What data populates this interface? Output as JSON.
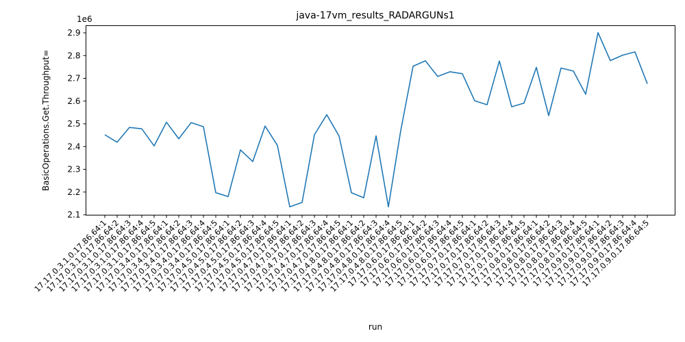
{
  "chart_data": {
    "type": "line",
    "title": "java-17vm_results_RADARGUNs1",
    "xlabel": "run",
    "ylabel": "BasicOperations.Get.Throughput=",
    "y_scale_label": "1e6",
    "ylim": [
      2.1,
      2.9
    ],
    "yticks": [
      "2.1",
      "2.2",
      "2.3",
      "2.4",
      "2.5",
      "2.6",
      "2.7",
      "2.8",
      "2.9"
    ],
    "grid": false,
    "line_color": "#1f77b4",
    "categories": [
      "17.17.0.3.1.0.17.86.64:1",
      "17.17.0.3.1.0.17.86.64:2",
      "17.17.0.3.1.0.17.86.64:3",
      "17.17.0.3.1.0.17.86.64:4",
      "17.17.0.3.1.0.17.86.64:5",
      "17.17.0.3.4.0.17.86.64:1",
      "17.17.0.3.4.0.17.86.64:2",
      "17.17.0.3.4.0.17.86.64:3",
      "17.17.0.3.4.0.17.86.64:4",
      "17.17.0.3.4.0.17.86.64:5",
      "17.17.0.4.5.0.17.86.64:1",
      "17.17.0.4.5.0.17.86.64:2",
      "17.17.0.4.5.0.17.86.64:3",
      "17.17.0.4.5.0.17.86.64:4",
      "17.17.0.4.5.0.17.86.64:5",
      "17.17.0.4.7.0.17.86.64:1",
      "17.17.0.4.7.0.17.86.64:2",
      "17.17.0.4.7.0.17.86.64:3",
      "17.17.0.4.7.0.17.86.64:4",
      "17.17.0.4.7.0.17.86.64:5",
      "17.17.0.4.8.0.17.86.64:1",
      "17.17.0.4.8.0.17.86.64:2",
      "17.17.0.4.8.0.17.86.64:3",
      "17.17.0.4.8.0.17.86.64:4",
      "17.17.0.4.8.0.17.86.64:5",
      "17.17.0.6.0.17.86.64:1",
      "17.17.0.6.0.17.86.64:2",
      "17.17.0.6.0.17.86.64:3",
      "17.17.0.6.0.17.86.64:4",
      "17.17.0.6.0.17.86.64:5",
      "17.17.0.7.0.17.86.64:1",
      "17.17.0.7.0.17.86.64:2",
      "17.17.0.7.0.17.86.64:3",
      "17.17.0.7.0.17.86.64:4",
      "17.17.0.7.0.17.86.64:5",
      "17.17.0.8.0.17.86.64:1",
      "17.17.0.8.0.17.86.64:2",
      "17.17.0.8.0.17.86.64:3",
      "17.17.0.8.0.17.86.64:4",
      "17.17.0.8.0.17.86.64:5",
      "17.17.0.9.0.17.86.64:1",
      "17.17.0.9.0.17.86.64:2",
      "17.17.0.9.0.17.86.64:3",
      "17.17.0.9.0.17.86.64:4",
      "17.17.0.9.0.17.86.64:5"
    ],
    "values": [
      2.452,
      2.419,
      2.484,
      2.478,
      2.403,
      2.507,
      2.434,
      2.505,
      2.487,
      2.197,
      2.18,
      2.385,
      2.334,
      2.49,
      2.405,
      2.135,
      2.154,
      2.452,
      2.54,
      2.446,
      2.197,
      2.175,
      2.447,
      2.135,
      2.47,
      2.753,
      2.777,
      2.708,
      2.729,
      2.72,
      2.601,
      2.584,
      2.776,
      2.575,
      2.591,
      2.748,
      2.536,
      2.745,
      2.732,
      2.63,
      2.901,
      2.778,
      2.802,
      2.816,
      2.676
    ]
  }
}
